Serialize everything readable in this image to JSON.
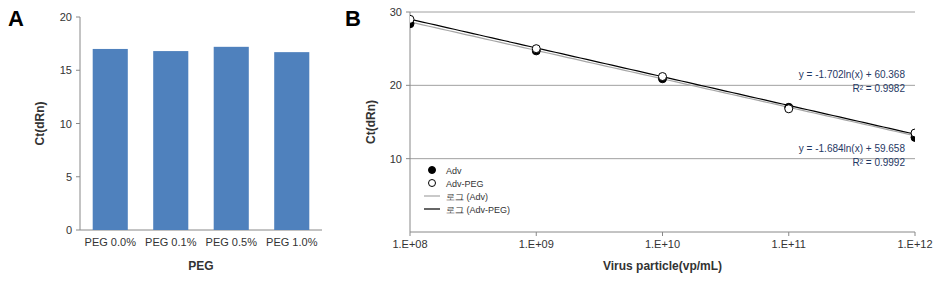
{
  "chart_data": [
    {
      "type": "bar",
      "title": "A",
      "categories": [
        "PEG 0.0%",
        "PEG 0.1%",
        "PEG 0.5%",
        "PEG 1.0%"
      ],
      "values": [
        17.0,
        16.8,
        17.2,
        16.7
      ],
      "color": "#4f81bd",
      "x_label": "PEG",
      "y_label": "Ct(dRn)",
      "ylim": [
        0,
        20
      ],
      "yticks": [
        0,
        5,
        10,
        15,
        20
      ],
      "grid": false
    },
    {
      "type": "scatter",
      "title": "B",
      "x_label": "Virus particle(vp/mL)",
      "y_label": "Ct(dRn)",
      "x": [
        100000000,
        1000000000,
        10000000000,
        100000000000,
        1000000000000
      ],
      "log": "x",
      "xlim": [
        100000000,
        1000000000000
      ],
      "xticks": [
        {
          "value": 100000000,
          "label": "1.E+08"
        },
        {
          "value": 1000000000,
          "label": "1.E+09"
        },
        {
          "value": 10000000000,
          "label": "1.E+10"
        },
        {
          "value": 100000000000,
          "label": "1.E+11"
        },
        {
          "value": 1000000000000,
          "label": "1.E+12"
        }
      ],
      "ylim": [
        0,
        30
      ],
      "yticks": [
        10,
        20,
        30
      ],
      "grid": true,
      "legend": "lower left",
      "series": [
        {
          "name": "Adv",
          "color": "#000000",
          "marker": "filled",
          "values": [
            28.4,
            24.7,
            20.9,
            17.0,
            12.9
          ]
        },
        {
          "name": "Adv-PEG",
          "color": "#000000",
          "marker": "open",
          "values": [
            29.0,
            25.0,
            21.2,
            16.8,
            13.5
          ]
        }
      ],
      "trendlines": [
        {
          "name": "로그 (Adv)",
          "color": "#a6a6a6",
          "line_style": "solid",
          "a": -1.684,
          "b": 59.658,
          "equation": "y = -1.684ln(x) + 59.658",
          "r2": 0.9992,
          "r2_label": "R² = 0.9992"
        },
        {
          "name": "로그 (Adv-PEG)",
          "color": "#000000",
          "line_style": "solid",
          "a": -1.702,
          "b": 60.368,
          "equation": "y = -1.702ln(x) + 60.368",
          "r2": 0.9982,
          "r2_label": "R² = 0.9982"
        }
      ]
    }
  ]
}
